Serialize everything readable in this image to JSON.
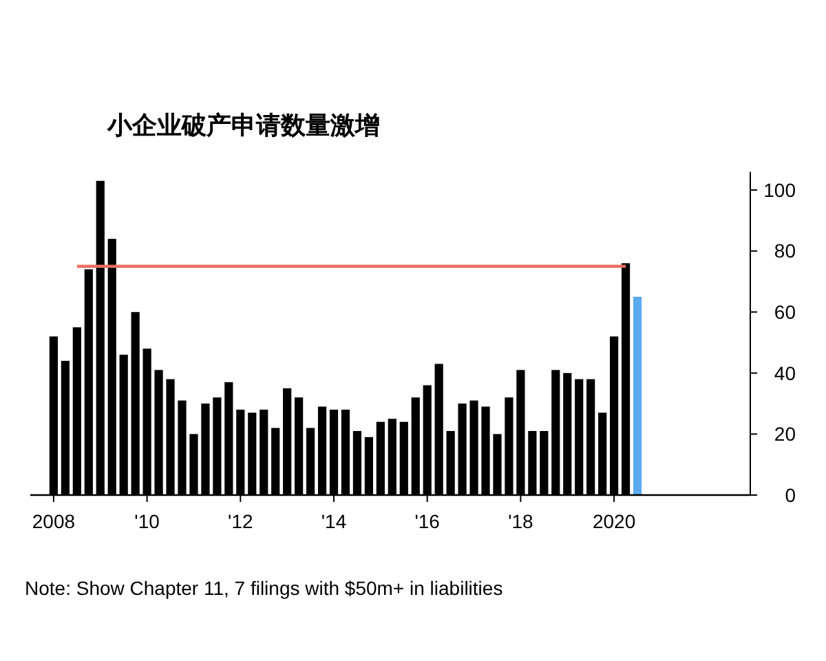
{
  "chart_data": {
    "type": "bar",
    "title": "小企业破产申请数量激增",
    "annotations": [
      "Note: Show Chapter 11, 7 filings with $50m+ in liabilities"
    ],
    "x": [
      "2008-01",
      "2008-04",
      "2008-07",
      "2008-10",
      "2009-01",
      "2009-04",
      "2009-07",
      "2009-10",
      "2010-01",
      "2010-04",
      "2010-07",
      "2010-10",
      "2011-01",
      "2011-04",
      "2011-07",
      "2011-10",
      "2012-01",
      "2012-04",
      "2012-07",
      "2012-10",
      "2013-01",
      "2013-04",
      "2013-07",
      "2013-10",
      "2014-01",
      "2014-04",
      "2014-07",
      "2014-10",
      "2015-01",
      "2015-04",
      "2015-07",
      "2015-10",
      "2016-01",
      "2016-04",
      "2016-07",
      "2016-10",
      "2017-01",
      "2017-04",
      "2017-07",
      "2017-10",
      "2018-01",
      "2018-04",
      "2018-07",
      "2018-10",
      "2019-01",
      "2019-04",
      "2019-07",
      "2019-10",
      "2020-01",
      "2020-04",
      "2020-07"
    ],
    "values": [
      52,
      44,
      55,
      74,
      103,
      84,
      46,
      60,
      48,
      41,
      38,
      31,
      20,
      30,
      32,
      37,
      28,
      27,
      28,
      22,
      35,
      32,
      22,
      29,
      28,
      28,
      21,
      19,
      24,
      25,
      24,
      32,
      36,
      43,
      21,
      30,
      31,
      29,
      20,
      32,
      41,
      21,
      21,
      41,
      40,
      38,
      38,
      27,
      52,
      76,
      65
    ],
    "colors": [
      "#000000",
      "#000000",
      "#000000",
      "#000000",
      "#000000",
      "#000000",
      "#000000",
      "#000000",
      "#000000",
      "#000000",
      "#000000",
      "#000000",
      "#000000",
      "#000000",
      "#000000",
      "#000000",
      "#000000",
      "#000000",
      "#000000",
      "#000000",
      "#000000",
      "#000000",
      "#000000",
      "#000000",
      "#000000",
      "#000000",
      "#000000",
      "#000000",
      "#000000",
      "#000000",
      "#000000",
      "#000000",
      "#000000",
      "#000000",
      "#000000",
      "#000000",
      "#000000",
      "#000000",
      "#000000",
      "#000000",
      "#000000",
      "#000000",
      "#000000",
      "#000000",
      "#000000",
      "#000000",
      "#000000",
      "#000000",
      "#000000",
      "#000000",
      "#5aaaf0"
    ],
    "xlim": [
      "2007-07",
      "2022-12"
    ],
    "ylim": [
      0,
      106
    ],
    "xticks": [
      {
        "value": "2008-01",
        "label": "2008"
      },
      {
        "value": "2010-01",
        "label": "'10"
      },
      {
        "value": "2012-01",
        "label": "'12"
      },
      {
        "value": "2014-01",
        "label": "'14"
      },
      {
        "value": "2016-01",
        "label": "'16"
      },
      {
        "value": "2018-01",
        "label": "'18"
      },
      {
        "value": "2020-01",
        "label": "2020"
      }
    ],
    "yticks": [
      0,
      20,
      40,
      60,
      80,
      100
    ],
    "ref_lines": [
      {
        "axis": "y",
        "value": 75,
        "color": "#ec6f5f"
      }
    ]
  }
}
